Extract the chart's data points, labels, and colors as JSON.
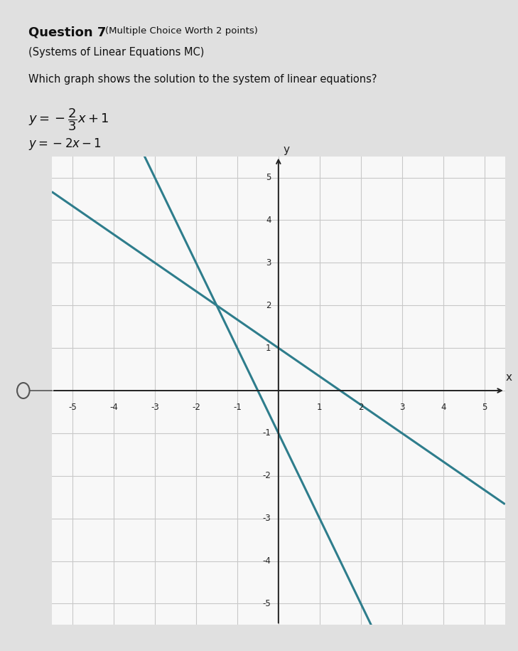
{
  "title_bold": "Question 7",
  "title_normal": "(Multiple Choice Worth 2 points)",
  "subtitle": "(Systems of Linear Equations MC)",
  "question": "Which graph shows the solution to the system of linear equations?",
  "line1_slope": -0.6667,
  "line1_intercept": 1,
  "line2_slope": -2,
  "line2_intercept": -1,
  "xlim": [
    -5.5,
    5.5
  ],
  "ylim": [
    -5.5,
    5.5
  ],
  "xticks": [
    -5,
    -4,
    -3,
    -2,
    -1,
    0,
    1,
    2,
    3,
    4,
    5
  ],
  "yticks": [
    -5,
    -4,
    -3,
    -2,
    -1,
    0,
    1,
    2,
    3,
    4,
    5
  ],
  "line_color": "#2e7d8c",
  "grid_color": "#c8c8c8",
  "axis_color": "#222222",
  "page_bg": "#e0e0e0",
  "graph_bg": "#f8f8f8",
  "text_color": "#111111"
}
